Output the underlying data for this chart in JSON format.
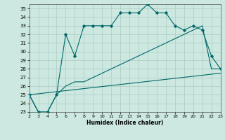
{
  "title": "",
  "xlabel": "Humidex (Indice chaleur)",
  "xlim": [
    2,
    23
  ],
  "ylim": [
    23,
    35.5
  ],
  "xticks": [
    2,
    3,
    4,
    5,
    6,
    7,
    8,
    9,
    10,
    11,
    12,
    13,
    14,
    15,
    16,
    17,
    18,
    19,
    20,
    21,
    22,
    23
  ],
  "yticks": [
    23,
    24,
    25,
    26,
    27,
    28,
    29,
    30,
    31,
    32,
    33,
    34,
    35
  ],
  "bg_color": "#cce8e0",
  "grid_color": "#aaccc4",
  "line_color": "#006868",
  "line1_x": [
    2,
    3,
    4,
    5,
    6,
    7,
    8,
    9,
    10,
    11,
    12,
    13,
    14,
    15,
    16,
    17,
    18,
    19,
    20,
    21,
    22,
    23
  ],
  "line1_y": [
    25.0,
    23.0,
    23.0,
    25.0,
    32.0,
    29.5,
    33.0,
    33.0,
    33.0,
    33.0,
    34.5,
    34.5,
    34.5,
    35.5,
    34.5,
    34.5,
    33.0,
    32.5,
    33.0,
    32.5,
    29.5,
    28.0
  ],
  "line2_x": [
    2,
    3,
    4,
    5,
    6,
    7,
    8,
    9,
    10,
    11,
    12,
    13,
    14,
    15,
    16,
    17,
    18,
    19,
    20,
    21,
    22,
    23
  ],
  "line2_y": [
    25.0,
    23.0,
    23.0,
    25.0,
    26.0,
    26.5,
    26.5,
    27.0,
    27.5,
    28.0,
    28.5,
    29.0,
    29.5,
    30.0,
    30.5,
    31.0,
    31.5,
    32.0,
    32.5,
    33.0,
    28.0,
    28.0
  ],
  "line3_x": [
    2,
    23
  ],
  "line3_y": [
    25.0,
    27.5
  ]
}
